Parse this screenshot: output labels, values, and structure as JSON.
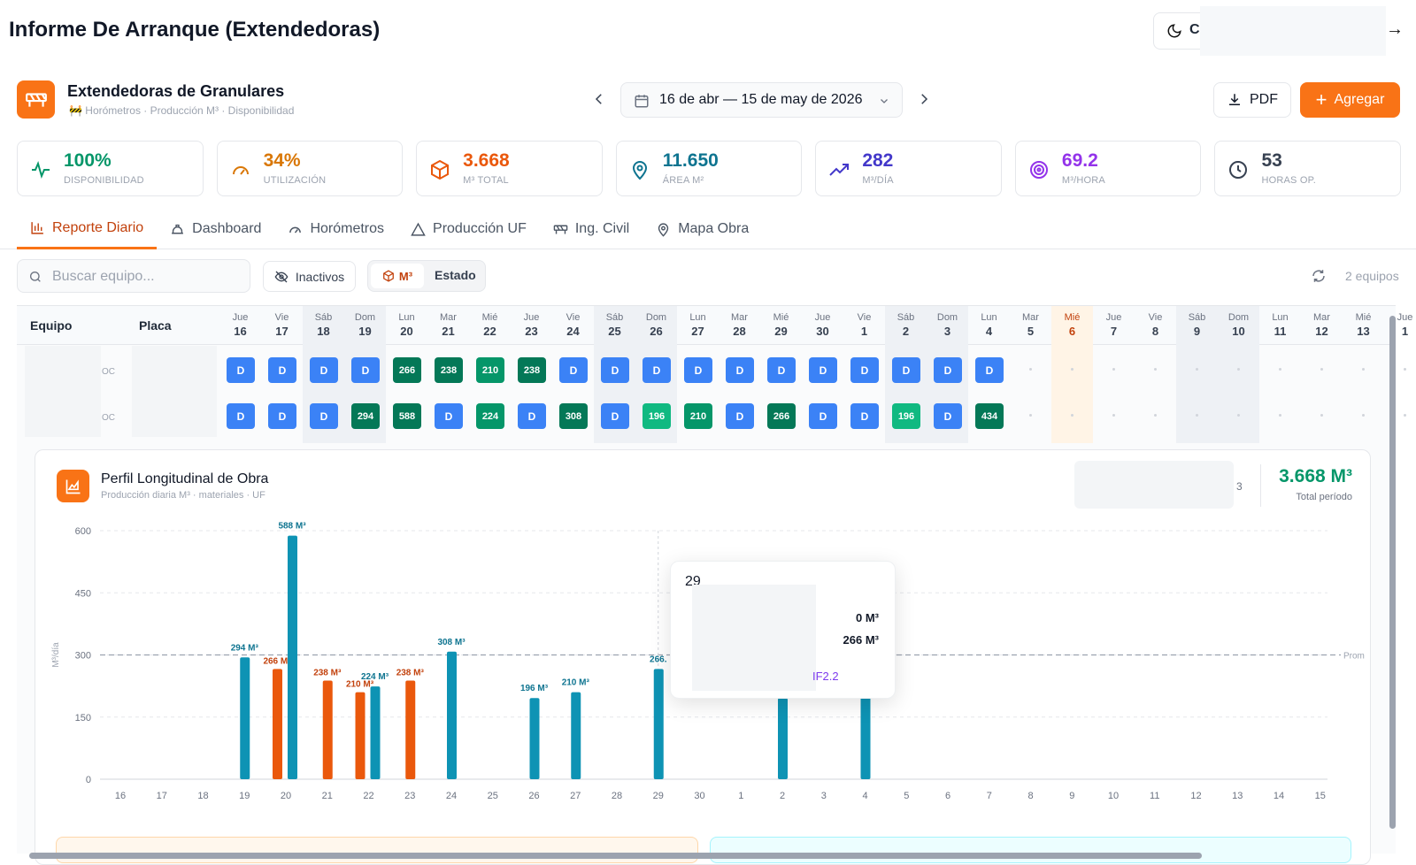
{
  "app": {
    "title": "Informe De Arranque (Extendedoras)",
    "theme_letter": "C",
    "exit_icon": "arrow-right-icon"
  },
  "module": {
    "title": "Extendedoras de Granulares",
    "subtitle": "Horómetros · Producción M³ · Disponibilidad",
    "date_range": "16 de abr — 15 de may de 2026",
    "pdf_label": "PDF",
    "add_label": "Agregar",
    "accent": "#f97316"
  },
  "kpis": [
    {
      "value": "100%",
      "label": "DISPONIBILIDAD",
      "color": "#059669",
      "icon": "activity-icon"
    },
    {
      "value": "34%",
      "label": "UTILIZACIÓN",
      "color": "#d97706",
      "icon": "gauge-icon"
    },
    {
      "value": "3.668",
      "label": "M³ TOTAL",
      "color": "#ea580c",
      "icon": "box-icon"
    },
    {
      "value": "11.650",
      "label": "ÁREA M²",
      "color": "#0e7490",
      "icon": "location-pin-icon"
    },
    {
      "value": "282",
      "label": "M³/DÍA",
      "color": "#4338ca",
      "icon": "trending-up-icon"
    },
    {
      "value": "69.2",
      "label": "M³/HORA",
      "color": "#9333ea",
      "icon": "target-icon"
    },
    {
      "value": "53",
      "label": "HORAS OP.",
      "color": "#374151",
      "icon": "clock-icon"
    }
  ],
  "tabs": [
    {
      "label": "Reporte Diario",
      "icon": "bar-chart-icon",
      "active": true
    },
    {
      "label": "Dashboard",
      "icon": "hard-hat-icon",
      "active": false
    },
    {
      "label": "Horómetros",
      "icon": "gauge-icon",
      "active": false
    },
    {
      "label": "Producción UF",
      "icon": "triangle-icon",
      "active": false
    },
    {
      "label": "Ing. Civil",
      "icon": "barrier-icon",
      "active": false
    },
    {
      "label": "Mapa Obra",
      "icon": "location-pin-icon",
      "active": false
    }
  ],
  "toolbar": {
    "search_placeholder": "Buscar equipo...",
    "inactivos_label": "Inactivos",
    "m3_label": "M³",
    "estado_label": "Estado",
    "equipos_count": "2 equipos"
  },
  "grid": {
    "col_equipo": "Equipo",
    "col_placa": "Placa",
    "row_suffix": "OC",
    "days": [
      {
        "dn": "Jue",
        "dd": "16"
      },
      {
        "dn": "Vie",
        "dd": "17"
      },
      {
        "dn": "Sáb",
        "dd": "18",
        "we": true
      },
      {
        "dn": "Dom",
        "dd": "19",
        "we": true
      },
      {
        "dn": "Lun",
        "dd": "20"
      },
      {
        "dn": "Mar",
        "dd": "21"
      },
      {
        "dn": "Mié",
        "dd": "22"
      },
      {
        "dn": "Jue",
        "dd": "23"
      },
      {
        "dn": "Vie",
        "dd": "24"
      },
      {
        "dn": "Sáb",
        "dd": "25",
        "we": true
      },
      {
        "dn": "Dom",
        "dd": "26",
        "we": true
      },
      {
        "dn": "Lun",
        "dd": "27"
      },
      {
        "dn": "Mar",
        "dd": "28"
      },
      {
        "dn": "Mié",
        "dd": "29"
      },
      {
        "dn": "Jue",
        "dd": "30"
      },
      {
        "dn": "Vie",
        "dd": "1"
      },
      {
        "dn": "Sáb",
        "dd": "2",
        "we": true
      },
      {
        "dn": "Dom",
        "dd": "3",
        "we": true
      },
      {
        "dn": "Lun",
        "dd": "4"
      },
      {
        "dn": "Mar",
        "dd": "5"
      },
      {
        "dn": "Mié",
        "dd": "6",
        "today": true
      },
      {
        "dn": "Jue",
        "dd": "7"
      },
      {
        "dn": "Vie",
        "dd": "8"
      },
      {
        "dn": "Sáb",
        "dd": "9",
        "we": true
      },
      {
        "dn": "Dom",
        "dd": "10",
        "we": true
      },
      {
        "dn": "Lun",
        "dd": "11"
      },
      {
        "dn": "Mar",
        "dd": "12"
      },
      {
        "dn": "Mié",
        "dd": "13"
      },
      {
        "dn": "Jue",
        "dd": "1"
      }
    ],
    "rows": [
      [
        "D",
        "D",
        "D",
        "D",
        "266",
        "238",
        "210",
        "238",
        "D",
        "D",
        "D",
        "D",
        "D",
        "D",
        "D",
        "D",
        "D",
        "D",
        "D"
      ],
      [
        "D",
        "D",
        "D",
        "294",
        "588",
        "D",
        "224",
        "D",
        "308",
        "D",
        "196",
        "210",
        "D",
        "266",
        "D",
        "D",
        "196",
        "D",
        "434"
      ]
    ]
  },
  "chart_data": {
    "type": "bar",
    "title": "Perfil Longitudinal de Obra",
    "subtitle": "Producción diaria M³ · materiales · UF",
    "ylabel": "M³/día",
    "ylim": [
      0,
      600
    ],
    "yticks": [
      0,
      150,
      300,
      450,
      600
    ],
    "average_label": "Prom",
    "average": 300,
    "categories": [
      "16",
      "17",
      "18",
      "19",
      "20",
      "21",
      "22",
      "23",
      "24",
      "25",
      "26",
      "27",
      "28",
      "29",
      "30",
      "1",
      "2",
      "3",
      "4",
      "5",
      "6",
      "7",
      "8",
      "9",
      "10",
      "11",
      "12",
      "13",
      "14",
      "15"
    ],
    "series": [
      {
        "color": "#0e93b4",
        "values": [
          0,
          0,
          0,
          294,
          588,
          0,
          224,
          0,
          308,
          0,
          196,
          210,
          0,
          266,
          0,
          0,
          196,
          0,
          434,
          0,
          0,
          0,
          0,
          0,
          0,
          0,
          0,
          0,
          0,
          0
        ]
      },
      {
        "color": "#ea580c",
        "values": [
          0,
          0,
          0,
          0,
          266,
          238,
          210,
          238,
          0,
          0,
          0,
          0,
          0,
          0,
          0,
          0,
          0,
          0,
          0,
          0,
          0,
          0,
          0,
          0,
          0,
          0,
          0,
          0,
          0,
          0
        ]
      }
    ],
    "data_labels": {
      "teal": [
        "294 M³",
        "588 M³",
        "224 M³",
        "308 M³",
        "196 M³",
        "210 M³",
        "266.",
        "196 M³"
      ],
      "orange": [
        "266 M³",
        "238 M³",
        "210 M³",
        "238 M³"
      ]
    },
    "total_value": "3.668 M³",
    "total_label": "Total período",
    "legend_fragment": "3"
  },
  "tooltip": {
    "title": "29",
    "value_1": "0 M³",
    "value_2": "266 M³",
    "code": "IF2.2"
  }
}
